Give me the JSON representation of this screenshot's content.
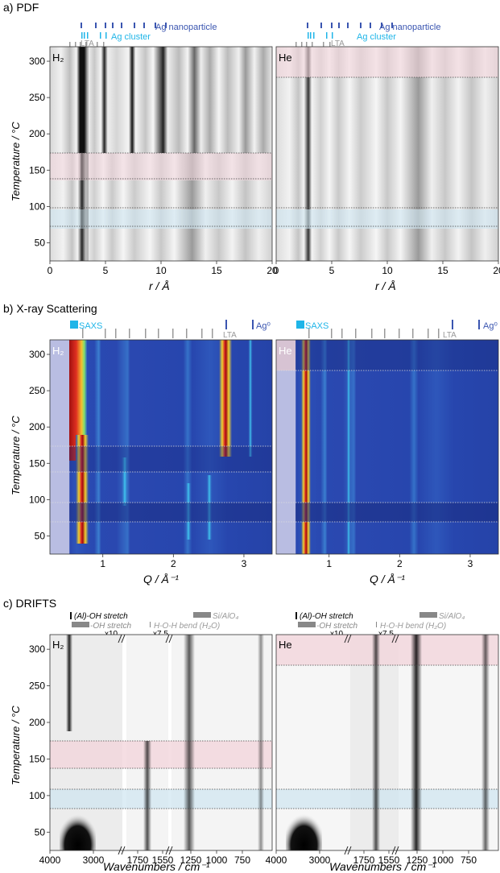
{
  "panels": {
    "a": {
      "label": "a) PDF",
      "xlabel": "r / Å"
    },
    "b": {
      "label": "b) X-ray Scattering",
      "xlabel": "Q / Å⁻¹"
    },
    "c": {
      "label": "c) DRIFTS",
      "xlabel": "Wavenumbers / cm⁻¹"
    }
  },
  "ylabel": "Temperature / °C",
  "gas": {
    "left": "H₂",
    "right": "He"
  },
  "legend": {
    "ag_nanoparticle": "Ag nanoparticle",
    "ag_cluster": "Ag cluster",
    "lta": "LTA",
    "saxs": "SAXS",
    "ag0": "Ag⁰",
    "aloh": "(Al)-OH stretch",
    "oh": "-OH stretch",
    "hoh": "H-O-H bend (H₂O)",
    "sialo": "Si/AlO₄",
    "x10": "x10",
    "x75": "x7.5"
  },
  "colors": {
    "ag_nanoparticle": "#3a55b0",
    "ag_cluster": "#1fb5e8",
    "lta": "#999999",
    "pink_band": "#f3d6dc",
    "blue_band": "#cfe6f1"
  },
  "chart_data": [
    {
      "type": "heatmap",
      "panel": "a-left",
      "gas": "H₂",
      "xlabel": "r / Å",
      "ylabel": "Temperature / °C",
      "xlim": [
        0,
        20
      ],
      "ylim": [
        25,
        320
      ],
      "xticks": [
        "0",
        "5",
        "10",
        "15",
        "20"
      ],
      "yticks": [
        "50",
        "100",
        "150",
        "200",
        "250",
        "300"
      ],
      "highlight_bands": [
        {
          "from": 138,
          "to": 175,
          "color": "pink"
        },
        {
          "from": 73,
          "to": 98,
          "color": "blue"
        }
      ]
    },
    {
      "type": "heatmap",
      "panel": "a-right",
      "gas": "He",
      "xlabel": "r / Å",
      "xlim": [
        0,
        20
      ],
      "ylim": [
        25,
        320
      ],
      "xticks": [
        "0",
        "5",
        "10",
        "15",
        "20"
      ],
      "highlight_bands": [
        {
          "from": 277,
          "to": 320,
          "color": "pink"
        },
        {
          "from": 73,
          "to": 98,
          "color": "blue"
        }
      ]
    },
    {
      "type": "heatmap",
      "panel": "b-left",
      "gas": "H₂",
      "xlabel": "Q / Å⁻¹",
      "ylabel": "Temperature / °C",
      "xlim": [
        0.25,
        3.4
      ],
      "ylim": [
        25,
        320
      ],
      "xticks": [
        "1",
        "2",
        "3"
      ],
      "yticks": [
        "50",
        "100",
        "150",
        "200",
        "250",
        "300"
      ],
      "highlight_bands": [
        {
          "from": 138,
          "to": 175
        },
        {
          "from": 73,
          "to": 98
        }
      ]
    },
    {
      "type": "heatmap",
      "panel": "b-right",
      "gas": "He",
      "xlabel": "Q / Å⁻¹",
      "xlim": [
        0.25,
        3.4
      ],
      "ylim": [
        25,
        320
      ],
      "xticks": [
        "1",
        "2",
        "3"
      ],
      "highlight_bands": [
        {
          "from": 277,
          "to": 320
        },
        {
          "from": 73,
          "to": 98
        }
      ]
    },
    {
      "type": "heatmap",
      "panel": "c-left",
      "gas": "H₂",
      "xlabel": "Wavenumbers / cm⁻¹",
      "ylabel": "Temperature / °C",
      "xticks": [
        "4000",
        "3000",
        "1750",
        "1550",
        "1250",
        "1000",
        "750"
      ],
      "yticks": [
        "50",
        "100",
        "150",
        "200",
        "250",
        "300"
      ],
      "highlight_bands": [
        {
          "from": 138,
          "to": 175,
          "color": "pink"
        },
        {
          "from": 73,
          "to": 98,
          "color": "blue"
        }
      ]
    },
    {
      "type": "heatmap",
      "panel": "c-right",
      "gas": "He",
      "xlabel": "Wavenumbers / cm⁻¹",
      "xticks": [
        "4000",
        "3000",
        "1750",
        "1550",
        "1250",
        "1000",
        "750"
      ],
      "highlight_bands": [
        {
          "from": 277,
          "to": 320,
          "color": "pink"
        },
        {
          "from": 73,
          "to": 98,
          "color": "blue"
        }
      ]
    }
  ]
}
